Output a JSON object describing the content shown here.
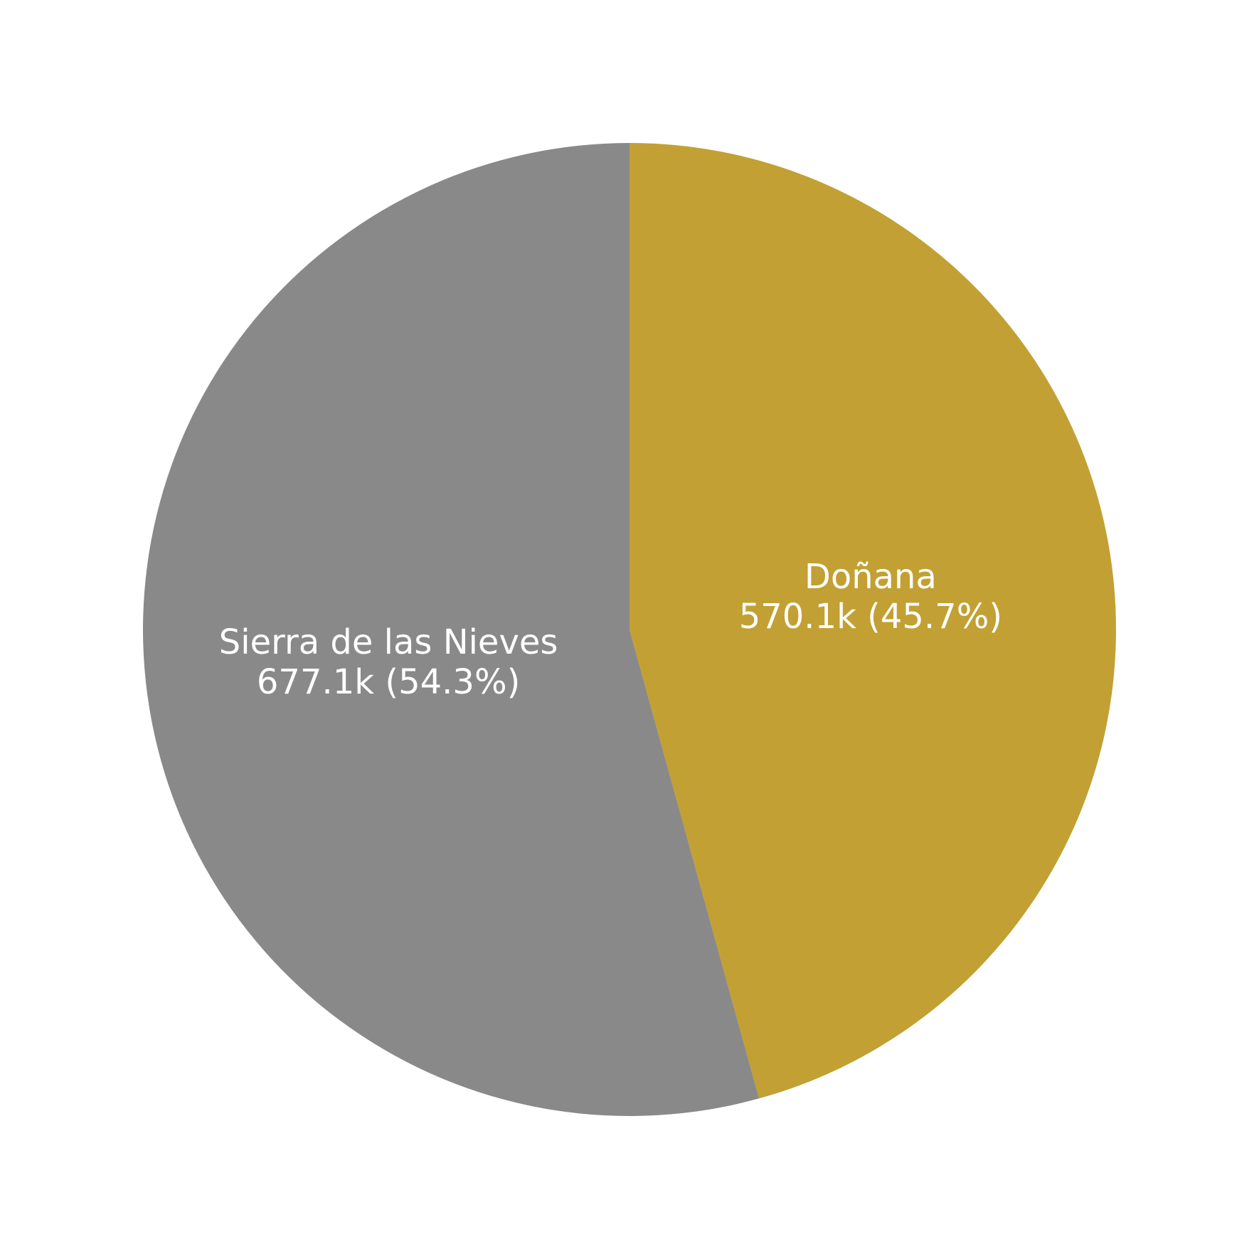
{
  "chart_data": {
    "type": "pie",
    "title": "",
    "start_angle": "top, clockwise",
    "slices": [
      {
        "name": "Doñana",
        "value": 570.1,
        "value_label": "570.1k (45.7%)",
        "percent": 45.7,
        "color": "#c2a033"
      },
      {
        "name": "Sierra de las Nieves",
        "value": 677.1,
        "value_label": "677.1k (54.3%)",
        "percent": 54.3,
        "color": "#898989"
      }
    ]
  }
}
